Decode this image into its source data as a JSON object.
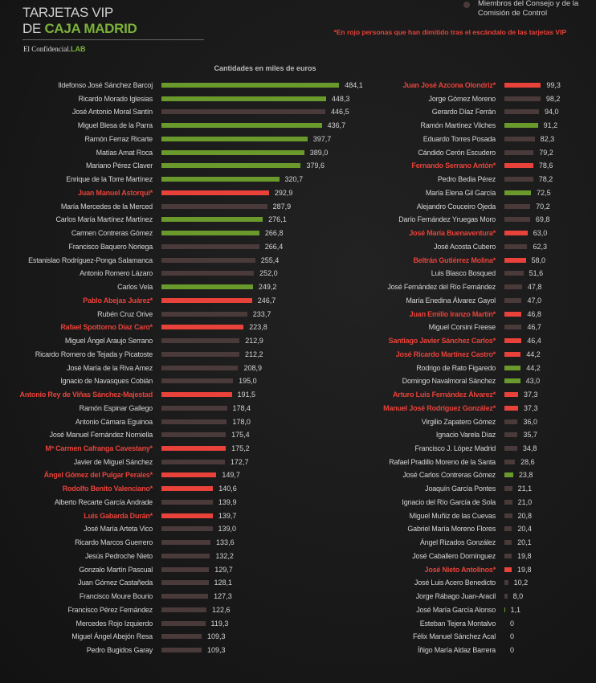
{
  "header": {
    "title_line1": "TARJETAS VIP",
    "title_line2_prefix": "DE ",
    "title_line2_highlight": "CAJA MADRID",
    "brand": "El Confidencial.",
    "brand_suffix": "LAB"
  },
  "legend": {
    "label": "Miembros del Consejo y de la Comisión de Control",
    "color": "#4a3a3a"
  },
  "note": "*En rojo personas que han dimitido tras el escándalo de las tarjetas VIP",
  "colors": {
    "green": "#6b9a2c",
    "brown": "#4a3a3a",
    "red": "#e8423a"
  },
  "chart_data": {
    "type": "bar",
    "orientation": "horizontal",
    "title": "Cantidades en miles de euros",
    "unit": "miles de euros",
    "columns": [
      {
        "rows": [
          {
            "name": "Ildefonso José Sánchez Barcoj",
            "value": 484.1,
            "label": "484,1",
            "group": "green"
          },
          {
            "name": "Ricardo Morado Iglesias",
            "value": 448.3,
            "label": "448,3",
            "group": "green"
          },
          {
            "name": "José Antonio Moral Santín",
            "value": 446.5,
            "label": "446,5",
            "group": "brown"
          },
          {
            "name": "Miguel Blesa de la Parra",
            "value": 436.7,
            "label": "436,7",
            "group": "green"
          },
          {
            "name": "Ramón Ferraz Ricarte",
            "value": 397.7,
            "label": "397,7",
            "group": "green"
          },
          {
            "name": "Matías Amat Roca",
            "value": 389.0,
            "label": "389,0",
            "group": "green"
          },
          {
            "name": "Mariano Pérez Claver",
            "value": 379.6,
            "label": "379,6",
            "group": "green"
          },
          {
            "name": "Enrique de la Torre Martínez",
            "value": 320.7,
            "label": "320,7",
            "group": "green"
          },
          {
            "name": "Juan Manuel Astorqui*",
            "value": 292.9,
            "label": "292,9",
            "group": "red"
          },
          {
            "name": "María Mercedes de la Merced",
            "value": 287.9,
            "label": "287,9",
            "group": "brown"
          },
          {
            "name": "Carlos María Martínez Martínez",
            "value": 276.1,
            "label": "276,1",
            "group": "green"
          },
          {
            "name": "Carmen Contreras Gómez",
            "value": 266.8,
            "label": "266,8",
            "group": "green"
          },
          {
            "name": "Francisco Baquero Noriega",
            "value": 266.4,
            "label": "266,4",
            "group": "brown"
          },
          {
            "name": "Estanislao Rodríguez-Ponga Salamanca",
            "value": 255.4,
            "label": "255,4",
            "group": "brown"
          },
          {
            "name": "Antonio Romero Lázaro",
            "value": 252.0,
            "label": "252,0",
            "group": "brown"
          },
          {
            "name": "Carlos Vela",
            "value": 249.2,
            "label": "249,2",
            "group": "green"
          },
          {
            "name": "Pablo Abejas Juárez*",
            "value": 246.7,
            "label": "246,7",
            "group": "red"
          },
          {
            "name": "Rubén Cruz Orive",
            "value": 233.7,
            "label": "233,7",
            "group": "brown"
          },
          {
            "name": "Rafael Spottorno Díaz Caro*",
            "value": 223.8,
            "label": "223,8",
            "group": "red"
          },
          {
            "name": "Miguel Ángel Araujo Serrano",
            "value": 212.9,
            "label": "212,9",
            "group": "brown"
          },
          {
            "name": "Ricardo Romero de Tejada y Picatoste",
            "value": 212.2,
            "label": "212,2",
            "group": "brown"
          },
          {
            "name": "José María de la Riva Amez",
            "value": 208.9,
            "label": "208,9",
            "group": "brown"
          },
          {
            "name": "Ignacio de Navasques Cobián",
            "value": 195.0,
            "label": "195,0",
            "group": "brown"
          },
          {
            "name": "Antonio Rey de Viñas Sánchez-Majestad",
            "value": 191.5,
            "label": "191,5",
            "group": "red"
          },
          {
            "name": "Ramón Espinar Gallego",
            "value": 178.4,
            "label": "178,4",
            "group": "brown"
          },
          {
            "name": "Antonio Cámara Eguinoa",
            "value": 178.0,
            "label": "178,0",
            "group": "brown"
          },
          {
            "name": "José Manuel Fernández Norniella",
            "value": 175.4,
            "label": "175,4",
            "group": "brown"
          },
          {
            "name": "Mª Carmen Cafranga Cavestany*",
            "value": 175.2,
            "label": "175,2",
            "group": "red"
          },
          {
            "name": "Javier de Miguel Sánchez",
            "value": 172.7,
            "label": "172,7",
            "group": "brown"
          },
          {
            "name": "Ángel Gómez del Pulgar Perales*",
            "value": 149.7,
            "label": "149,7",
            "group": "red"
          },
          {
            "name": "Rodolfo Benito Valenciano*",
            "value": 140.6,
            "label": "140,6",
            "group": "red"
          },
          {
            "name": "Alberto Recarte García Andrade",
            "value": 139.9,
            "label": "139,9",
            "group": "brown"
          },
          {
            "name": "Luis Gabarda Durán*",
            "value": 139.7,
            "label": "139,7",
            "group": "red"
          },
          {
            "name": "José María Arteta Vico",
            "value": 139.0,
            "label": "139,0",
            "group": "brown"
          },
          {
            "name": "Ricardo Marcos Guerrero",
            "value": 133.6,
            "label": "133,6",
            "group": "brown"
          },
          {
            "name": "Jesús Pedroche Nieto",
            "value": 132.2,
            "label": "132,2",
            "group": "brown"
          },
          {
            "name": "Gonzalo Martín Pascual",
            "value": 129.7,
            "label": "129,7",
            "group": "brown"
          },
          {
            "name": "Juan Gómez Castañeda",
            "value": 128.1,
            "label": "128,1",
            "group": "brown"
          },
          {
            "name": "Francisco Moure Bourio",
            "value": 127.3,
            "label": "127,3",
            "group": "brown"
          },
          {
            "name": "Francisco Pérez Fernández",
            "value": 122.6,
            "label": "122,6",
            "group": "brown"
          },
          {
            "name": "Mercedes Rojo Izquierdo",
            "value": 119.3,
            "label": "119,3",
            "group": "brown"
          },
          {
            "name": "Miguel Ángel Abejón Resa",
            "value": 109.3,
            "label": "109,3",
            "group": "brown"
          },
          {
            "name": "Pedro Bugidos Garay",
            "value": 109.3,
            "label": "109,3",
            "group": "brown"
          }
        ]
      },
      {
        "rows": [
          {
            "name": "Juan José Azcona Olondriz*",
            "value": 99.3,
            "label": "99,3",
            "group": "red"
          },
          {
            "name": "Jorge Gómez Moreno",
            "value": 98.2,
            "label": "98,2",
            "group": "brown"
          },
          {
            "name": "Gerardo Díaz Ferrán",
            "value": 94.0,
            "label": "94,0",
            "group": "brown"
          },
          {
            "name": "Ramón Martínez Vilches",
            "value": 91.2,
            "label": "91,2",
            "group": "green"
          },
          {
            "name": "Eduardo Torres Posada",
            "value": 82.3,
            "label": "82,3",
            "group": "brown"
          },
          {
            "name": "Cándido Cerón Escudero",
            "value": 79.2,
            "label": "79,2",
            "group": "brown"
          },
          {
            "name": "Fernando Serrano Antón*",
            "value": 78.6,
            "label": "78,6",
            "group": "red"
          },
          {
            "name": "Pedro Bedia Pérez",
            "value": 78.2,
            "label": "78,2",
            "group": "brown"
          },
          {
            "name": "María Elena Gil García",
            "value": 72.5,
            "label": "72,5",
            "group": "green"
          },
          {
            "name": "Alejandro Couceiro Ojeda",
            "value": 70.2,
            "label": "70,2",
            "group": "brown"
          },
          {
            "name": "Darío Fernández Yruegas Moro",
            "value": 69.8,
            "label": "69,8",
            "group": "brown"
          },
          {
            "name": "José María Buenaventura*",
            "value": 63.0,
            "label": "63,0",
            "group": "red"
          },
          {
            "name": "José Acosta Cubero",
            "value": 62.3,
            "label": "62,3",
            "group": "brown"
          },
          {
            "name": "Beltrán Gutiérrez Molina*",
            "value": 58.0,
            "label": "58,0",
            "group": "red"
          },
          {
            "name": "Luis Blasco Bosqued",
            "value": 51.6,
            "label": "51,6",
            "group": "brown"
          },
          {
            "name": "José Fernández del Río Fernández",
            "value": 47.8,
            "label": "47,8",
            "group": "brown"
          },
          {
            "name": "María Enedina Álvarez Gayol",
            "value": 47.0,
            "label": "47,0",
            "group": "brown"
          },
          {
            "name": "Juan Emilio Iranzo Martín*",
            "value": 46.8,
            "label": "46,8",
            "group": "red"
          },
          {
            "name": "Miguel Corsini Freese",
            "value": 46.7,
            "label": "46,7",
            "group": "brown"
          },
          {
            "name": "Santiago Javier Sánchez Carlos*",
            "value": 46.4,
            "label": "46,4",
            "group": "red"
          },
          {
            "name": "José Ricardo Martínez Castro*",
            "value": 44.2,
            "label": "44,2",
            "group": "red"
          },
          {
            "name": "Rodrigo de Rato Figaredo",
            "value": 44.2,
            "label": "44,2",
            "group": "green"
          },
          {
            "name": "Domingo Navalmoral Sánchez",
            "value": 43.0,
            "label": "43,0",
            "group": "green"
          },
          {
            "name": "Arturo Luis Fernández Álvarez*",
            "value": 37.3,
            "label": "37,3",
            "group": "red"
          },
          {
            "name": "Manuel José Rodríguez González*",
            "value": 37.3,
            "label": "37,3",
            "group": "red"
          },
          {
            "name": "Virgilio Zapatero Gómez",
            "value": 36.0,
            "label": "36,0",
            "group": "brown"
          },
          {
            "name": "Ignacio Varela Díaz",
            "value": 35.7,
            "label": "35,7",
            "group": "brown"
          },
          {
            "name": "Francisco J. López Madrid",
            "value": 34.8,
            "label": "34,8",
            "group": "brown"
          },
          {
            "name": "Rafael Pradillo Moreno de la Santa",
            "value": 28.6,
            "label": "28,6",
            "group": "brown"
          },
          {
            "name": "José Carlos Contreras Gómez",
            "value": 23.8,
            "label": "23,8",
            "group": "green"
          },
          {
            "name": "Joaquín García Pontes",
            "value": 21.1,
            "label": "21,1",
            "group": "brown"
          },
          {
            "name": "Ignacio del Río García de Sola",
            "value": 21.0,
            "label": "21,0",
            "group": "brown"
          },
          {
            "name": "Miguel Muñiz de las Cuevas",
            "value": 20.8,
            "label": "20,8",
            "group": "brown"
          },
          {
            "name": "Gabriel María Moreno Flores",
            "value": 20.4,
            "label": "20,4",
            "group": "brown"
          },
          {
            "name": "Ángel Rizados González",
            "value": 20.1,
            "label": "20,1",
            "group": "brown"
          },
          {
            "name": "José Caballero Domínguez",
            "value": 19.8,
            "label": "19,8",
            "group": "brown"
          },
          {
            "name": "José Nieto Antolinos*",
            "value": 19.8,
            "label": "19,8",
            "group": "red"
          },
          {
            "name": "José Luis Acero Benedicto",
            "value": 10.2,
            "label": "10,2",
            "group": "brown"
          },
          {
            "name": "Jorge Rábago Juan-Aracil",
            "value": 8.0,
            "label": "8,0",
            "group": "brown"
          },
          {
            "name": "José María García Alonso",
            "value": 1.1,
            "label": "1,1",
            "group": "green"
          },
          {
            "name": "Esteban Tejera Montalvo",
            "value": 0,
            "label": "0",
            "group": "brown"
          },
          {
            "name": "Félix Manuel Sánchez Acal",
            "value": 0,
            "label": "0",
            "group": "brown"
          },
          {
            "name": "Íñigo María Aldaz Barrera",
            "value": 0,
            "label": "0",
            "group": "brown"
          }
        ]
      }
    ]
  }
}
